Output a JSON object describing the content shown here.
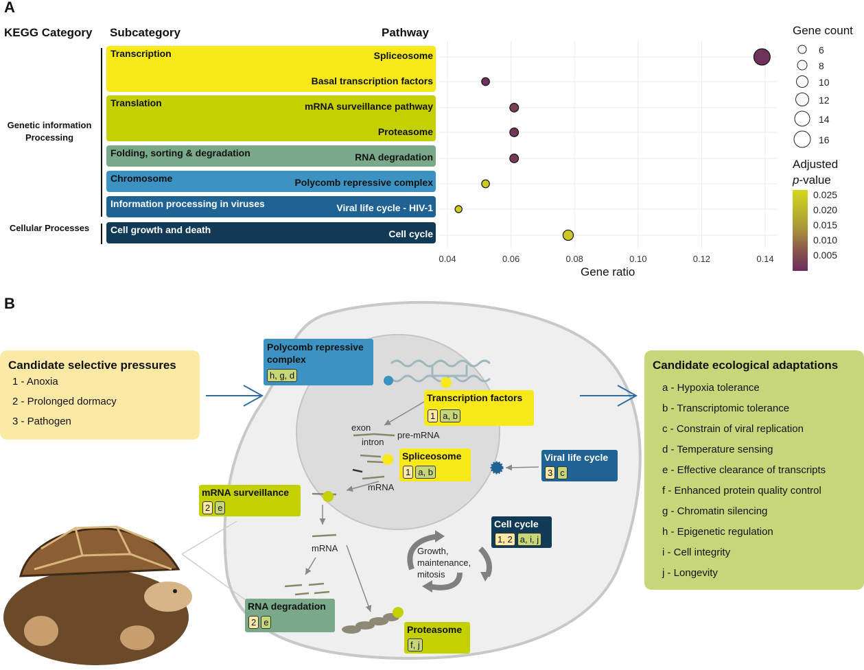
{
  "panel_a": {
    "letter": "A",
    "headers": {
      "category": "KEGG Category",
      "subcategory": "Subcategory",
      "pathway": "Pathway"
    },
    "categories": [
      {
        "label": "Genetic information Processing"
      },
      {
        "label": "Cellular Processes"
      }
    ],
    "bands": [
      {
        "subcategory": "Transcription",
        "color": "#f7e81a",
        "pathways": [
          "Spliceosome",
          "Basal transcription factors"
        ]
      },
      {
        "subcategory": "Translation",
        "color": "#c5d000",
        "pathways": [
          "mRNA surveillance pathway",
          "Proteasome"
        ]
      },
      {
        "subcategory": "Folding, sorting & degradation",
        "color": "#7aa98a",
        "pathways": [
          "RNA degradation"
        ]
      },
      {
        "subcategory": "Chromosome",
        "color": "#3c93c3",
        "pathways": [
          "Polycomb repressive complex"
        ]
      },
      {
        "subcategory": "Information processing in viruses",
        "color": "#1f6394",
        "pathways": [
          "Viral life cycle - HIV-1"
        ]
      },
      {
        "subcategory": "Cell growth and death",
        "color": "#113a57",
        "pathways": [
          "Cell cycle"
        ]
      }
    ],
    "legend": {
      "size_title": "Gene count",
      "sizes": [
        "6",
        "8",
        "10",
        "12",
        "14",
        "16"
      ],
      "color_title_1": "Adjusted",
      "color_title_2_italic": "p",
      "color_title_2_rest": "-value",
      "color_ticks": [
        "0.025",
        "0.020",
        "0.015",
        "0.010",
        "0.005"
      ],
      "color_low": "#6b2d5c",
      "color_mid": "#9c6b4a",
      "color_high": "#d4d81c"
    }
  },
  "chart_data": {
    "type": "scatter",
    "xlabel": "Gene ratio",
    "xlim": [
      0.04,
      0.145
    ],
    "xticks": [
      "0.04",
      "0.06",
      "0.08",
      "0.10",
      "0.12",
      "0.14"
    ],
    "categories": [
      "Spliceosome",
      "Basal transcription factors",
      "mRNA surveillance pathway",
      "Proteasome",
      "RNA degradation",
      "Polycomb repressive complex",
      "Viral life cycle - HIV-1",
      "Cell cycle"
    ],
    "points": [
      {
        "pathway": "Spliceosome",
        "gene_ratio": 0.139,
        "gene_count": 16,
        "p_adj": 0.001
      },
      {
        "pathway": "Basal transcription factors",
        "gene_ratio": 0.052,
        "gene_count": 6,
        "p_adj": 0.001
      },
      {
        "pathway": "mRNA surveillance pathway",
        "gene_ratio": 0.061,
        "gene_count": 7,
        "p_adj": 0.004
      },
      {
        "pathway": "Proteasome",
        "gene_ratio": 0.061,
        "gene_count": 7,
        "p_adj": 0.002
      },
      {
        "pathway": "RNA degradation",
        "gene_ratio": 0.061,
        "gene_count": 7,
        "p_adj": 0.003
      },
      {
        "pathway": "Polycomb repressive complex",
        "gene_ratio": 0.052,
        "gene_count": 6,
        "p_adj": 0.025
      },
      {
        "pathway": "Viral life cycle - HIV-1",
        "gene_ratio": 0.0435,
        "gene_count": 5,
        "p_adj": 0.026
      },
      {
        "pathway": "Cell cycle",
        "gene_ratio": 0.078,
        "gene_count": 9,
        "p_adj": 0.025
      }
    ]
  },
  "panel_b": {
    "letter": "B",
    "pressures": {
      "title": "Candidate selective pressures",
      "items": [
        "1 - Anoxia",
        "2 - Prolonged dormacy",
        "3 - Pathogen"
      ]
    },
    "adaptations": {
      "title": "Candidate ecological adaptations",
      "items": [
        "a - Hypoxia tolerance",
        "b - Transcriptomic tolerance",
        "c - Constrain of viral replication",
        "d - Temperature sensing",
        "e - Effective clearance of transcripts",
        "f - Enhanced protein quality control",
        "g - Chromatin silencing",
        "h - Epigenetic regulation",
        "i - Cell integrity",
        "j - Longevity"
      ]
    },
    "labels": {
      "polycomb": {
        "title": "Polycomb repressive complex",
        "chips": [
          "h, g, d"
        ]
      },
      "tf": {
        "title": "Transcription factors",
        "p": "1",
        "a": "a, b"
      },
      "spliceosome": {
        "title": "Spliceosome",
        "p": "1",
        "a": "a, b"
      },
      "viral": {
        "title": "Viral life cycle",
        "p": "3",
        "a": "c"
      },
      "mrna_surv": {
        "title": "mRNA surveillance",
        "p": "2",
        "a": "e"
      },
      "cellcycle": {
        "title": "Cell cycle",
        "p": "1, 2",
        "a": "a, i, j"
      },
      "rnadeg": {
        "title": "RNA degradation",
        "p": "2",
        "a": "e"
      },
      "proteasome": {
        "title": "Proteasome",
        "a": "f, j"
      }
    },
    "text": {
      "exon": "exon",
      "intron": "intron",
      "premrna": "pre-mRNA",
      "mrna1": "mRNA",
      "mrna2": "mRNA",
      "growth": "Growth,",
      "maint": "maintenance,",
      "mitosis": "mitosis"
    }
  }
}
